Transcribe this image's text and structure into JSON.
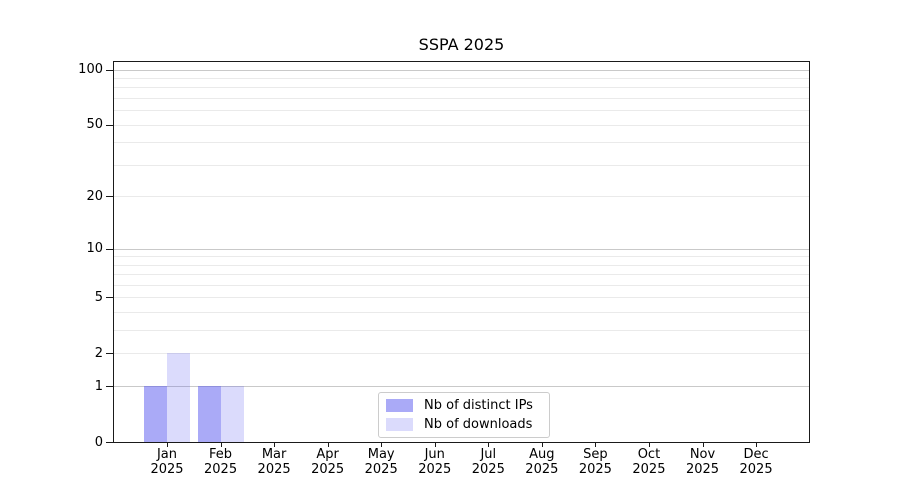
{
  "chart_data": {
    "type": "bar",
    "title": "SSPA 2025",
    "categories": [
      "Jan 2025",
      "Feb 2025",
      "Mar 2025",
      "Apr 2025",
      "May 2025",
      "Jun 2025",
      "Jul 2025",
      "Aug 2025",
      "Sep 2025",
      "Oct 2025",
      "Nov 2025",
      "Dec 2025"
    ],
    "series": [
      {
        "name": "Nb of distinct IPs",
        "color": "#5555f0",
        "alpha": 0.5,
        "values": [
          1,
          1,
          0,
          0,
          0,
          0,
          0,
          0,
          0,
          0,
          0,
          0
        ]
      },
      {
        "name": "Nb of downloads",
        "color": "#5555f0",
        "alpha": 0.21,
        "values": [
          2,
          1,
          0,
          0,
          0,
          0,
          0,
          0,
          0,
          0,
          0,
          0
        ]
      }
    ],
    "xlabel": "",
    "ylabel": "",
    "yscale": "log1p",
    "ylim": [
      0,
      112
    ],
    "yticks": [
      0,
      1,
      2,
      5,
      10,
      20,
      50,
      100
    ],
    "gridline_values": [
      1,
      2,
      3,
      4,
      5,
      6,
      7,
      8,
      9,
      10,
      20,
      30,
      40,
      50,
      60,
      70,
      80,
      90,
      100
    ],
    "major_gridline_values": [
      1,
      10,
      100
    ],
    "grid": "horizontal",
    "legend_position": "lower center",
    "colors": {
      "grid_minor": "#eaeaea",
      "grid_major": "#c9c9c9",
      "spine": "#1a1a1a",
      "text": "#000000",
      "background": "#ffffff"
    }
  }
}
